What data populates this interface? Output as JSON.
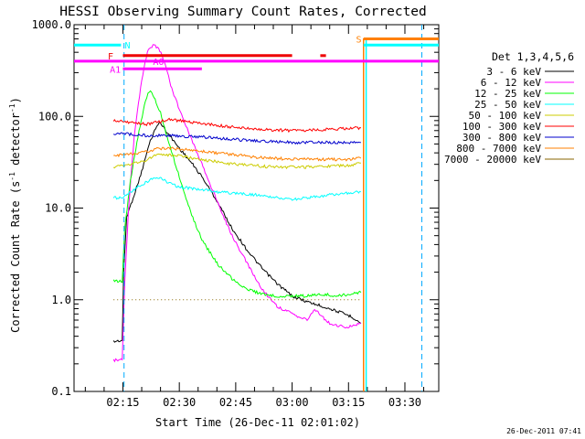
{
  "chart_data": {
    "type": "line",
    "title": "HESSI Observing Summary Count Rates, Corrected",
    "xlabel": "Start Time (26-Dec-11 02:01:02)",
    "ylabel_main": "Corrected Count Rate (s",
    "ylabel_exp1": "-1",
    "ylabel_mid": " detector",
    "ylabel_exp2": "-1",
    "ylabel_end": ")",
    "yscale": "log",
    "ylim": [
      0.1,
      1000
    ],
    "xlim_minutes": [
      2.0,
      99.0
    ],
    "y_ticks": [
      {
        "value": 0.1,
        "label": "0.1"
      },
      {
        "value": 1,
        "label": "1.0"
      },
      {
        "value": 10,
        "label": "10.0"
      },
      {
        "value": 100,
        "label": "100.0"
      },
      {
        "value": 1000,
        "label": "1000.0"
      }
    ],
    "x_ticks": [
      {
        "minutes": 15,
        "label": "02:15"
      },
      {
        "minutes": 30,
        "label": "02:30"
      },
      {
        "minutes": 45,
        "label": "02:45"
      },
      {
        "minutes": 60,
        "label": "03:00"
      },
      {
        "minutes": 75,
        "label": "03:15"
      },
      {
        "minutes": 90,
        "label": "03:30"
      }
    ],
    "legend_title": "Det 1,3,4,5,6",
    "series": [
      {
        "name": "3 - 6 keV",
        "color": "#000000",
        "points": [
          [
            12.5,
            0.35
          ],
          [
            14.8,
            0.36
          ],
          [
            15.2,
            2
          ],
          [
            16,
            8
          ],
          [
            18,
            14
          ],
          [
            20,
            25
          ],
          [
            22,
            50
          ],
          [
            24,
            80
          ],
          [
            25,
            85
          ],
          [
            27,
            65
          ],
          [
            30,
            45
          ],
          [
            33,
            32
          ],
          [
            36,
            22
          ],
          [
            40,
            12
          ],
          [
            44,
            6
          ],
          [
            48,
            3.5
          ],
          [
            52,
            2.2
          ],
          [
            56,
            1.5
          ],
          [
            60,
            1.1
          ],
          [
            64,
            0.95
          ],
          [
            68,
            0.85
          ],
          [
            72,
            0.75
          ],
          [
            76,
            0.65
          ],
          [
            78.3,
            0.55
          ]
        ]
      },
      {
        "name": "6 - 12 keV",
        "color": "#ff00ff",
        "points": [
          [
            12.5,
            0.22
          ],
          [
            14.8,
            0.22
          ],
          [
            15.5,
            1.5
          ],
          [
            16.5,
            10
          ],
          [
            18,
            60
          ],
          [
            20,
            250
          ],
          [
            21.5,
            500
          ],
          [
            23,
            600
          ],
          [
            24.5,
            560
          ],
          [
            26,
            400
          ],
          [
            28,
            200
          ],
          [
            30,
            120
          ],
          [
            33,
            60
          ],
          [
            36,
            30
          ],
          [
            40,
            12
          ],
          [
            44,
            5
          ],
          [
            48,
            2.5
          ],
          [
            52,
            1.3
          ],
          [
            56,
            0.85
          ],
          [
            60,
            0.7
          ],
          [
            64,
            0.6
          ],
          [
            66,
            0.8
          ],
          [
            68,
            0.65
          ],
          [
            70,
            0.55
          ],
          [
            74,
            0.5
          ],
          [
            78.3,
            0.55
          ]
        ]
      },
      {
        "name": "12 - 25 keV",
        "color": "#00ff00",
        "points": [
          [
            12.5,
            1.6
          ],
          [
            14.8,
            1.6
          ],
          [
            15.5,
            6
          ],
          [
            17,
            20
          ],
          [
            19,
            60
          ],
          [
            21,
            150
          ],
          [
            22,
            190
          ],
          [
            23,
            170
          ],
          [
            25,
            110
          ],
          [
            27,
            55
          ],
          [
            30,
            22
          ],
          [
            33,
            9
          ],
          [
            36,
            4.5
          ],
          [
            40,
            2.5
          ],
          [
            44,
            1.7
          ],
          [
            48,
            1.3
          ],
          [
            52,
            1.15
          ],
          [
            56,
            1.1
          ],
          [
            60,
            1.1
          ],
          [
            64,
            1.1
          ],
          [
            68,
            1.15
          ],
          [
            72,
            1.1
          ],
          [
            78.3,
            1.2
          ]
        ]
      },
      {
        "name": "25 - 50 keV",
        "color": "#00ffff",
        "points": [
          [
            12.5,
            13
          ],
          [
            15,
            13
          ],
          [
            17,
            15
          ],
          [
            19,
            17
          ],
          [
            21,
            19
          ],
          [
            24,
            22
          ],
          [
            27,
            19
          ],
          [
            30,
            17
          ],
          [
            35,
            16
          ],
          [
            40,
            15
          ],
          [
            45,
            14.5
          ],
          [
            50,
            14
          ],
          [
            55,
            13
          ],
          [
            60,
            12.5
          ],
          [
            65,
            13
          ],
          [
            70,
            14
          ],
          [
            75,
            14.5
          ],
          [
            78.3,
            15
          ]
        ]
      },
      {
        "name": "50 - 100 keV",
        "color": "#cccc00",
        "points": [
          [
            12.5,
            28
          ],
          [
            15,
            29
          ],
          [
            18,
            31
          ],
          [
            21,
            33
          ],
          [
            24,
            38
          ],
          [
            27,
            38
          ],
          [
            30,
            37
          ],
          [
            35,
            34
          ],
          [
            40,
            32
          ],
          [
            45,
            30
          ],
          [
            50,
            29
          ],
          [
            55,
            28
          ],
          [
            60,
            28
          ],
          [
            65,
            28
          ],
          [
            70,
            28.5
          ],
          [
            75,
            29
          ],
          [
            78.3,
            31
          ]
        ]
      },
      {
        "name": "100 - 300 keV",
        "color": "#ff0000",
        "points": [
          [
            12.5,
            90
          ],
          [
            15,
            88
          ],
          [
            18,
            85
          ],
          [
            21,
            82
          ],
          [
            24,
            86
          ],
          [
            27,
            92
          ],
          [
            30,
            90
          ],
          [
            35,
            85
          ],
          [
            40,
            80
          ],
          [
            45,
            76
          ],
          [
            50,
            73
          ],
          [
            55,
            71
          ],
          [
            60,
            70
          ],
          [
            65,
            71
          ],
          [
            70,
            72
          ],
          [
            75,
            74
          ],
          [
            78.3,
            75
          ]
        ]
      },
      {
        "name": "300 - 800 keV",
        "color": "#0000cc",
        "points": [
          [
            12.5,
            65
          ],
          [
            15,
            65
          ],
          [
            18,
            63
          ],
          [
            21,
            62
          ],
          [
            24,
            62
          ],
          [
            27,
            62
          ],
          [
            30,
            61
          ],
          [
            35,
            60
          ],
          [
            40,
            58
          ],
          [
            45,
            56
          ],
          [
            50,
            54
          ],
          [
            55,
            53
          ],
          [
            60,
            52
          ],
          [
            65,
            52
          ],
          [
            70,
            52
          ],
          [
            75,
            52
          ],
          [
            78.3,
            52
          ]
        ]
      },
      {
        "name": "800 - 7000 keV",
        "color": "#ff8000",
        "points": [
          [
            12.5,
            37
          ],
          [
            15,
            38
          ],
          [
            18,
            39
          ],
          [
            21,
            41
          ],
          [
            24,
            44
          ],
          [
            27,
            45
          ],
          [
            30,
            44
          ],
          [
            35,
            42
          ],
          [
            40,
            40
          ],
          [
            45,
            38
          ],
          [
            50,
            36
          ],
          [
            55,
            35
          ],
          [
            60,
            34
          ],
          [
            65,
            34
          ],
          [
            70,
            34
          ],
          [
            75,
            34
          ],
          [
            78.3,
            35
          ]
        ]
      },
      {
        "name": "7000 - 20000 keV",
        "color": "#886600",
        "points": [
          [
            12.5,
            1.0
          ],
          [
            14,
            1.0
          ],
          [
            22,
            1.0
          ],
          [
            30,
            1.0
          ],
          [
            36,
            0.95
          ],
          [
            40,
            1.0
          ],
          [
            50,
            1.0
          ],
          [
            60,
            1.0
          ],
          [
            70,
            1.0
          ],
          [
            78.3,
            1.0
          ]
        ]
      }
    ],
    "annotations": [
      {
        "label": "N",
        "color": "#00ffff",
        "level": 600,
        "label_minutes": 15.5,
        "segments": [
          [
            2,
            14.5
          ],
          [
            79,
            99
          ]
        ]
      },
      {
        "label": "F",
        "color": "#ee0000",
        "level": 460,
        "label_minutes": 11.0,
        "segments": [
          [
            15,
            60
          ],
          [
            67.5,
            69
          ]
        ]
      },
      {
        "label": "A0",
        "color": "#ff00ff",
        "level": 400,
        "label_minutes": 23.0,
        "segments": [
          [
            2,
            99
          ]
        ]
      },
      {
        "label": "A1",
        "color": "#ff00ff",
        "level": 330,
        "label_minutes": 11.5,
        "segments": [
          [
            15,
            36
          ]
        ]
      },
      {
        "label": "S",
        "color": "#ff8000",
        "level": 700,
        "label_minutes": 77.0,
        "segments": [
          [
            79,
            99
          ]
        ]
      }
    ],
    "night_markers_minutes": [
      15.3,
      94.5
    ],
    "saa_markers_minutes": [
      79.0,
      79.7
    ]
  },
  "footer_date": "26-Dec-2011 07:41"
}
